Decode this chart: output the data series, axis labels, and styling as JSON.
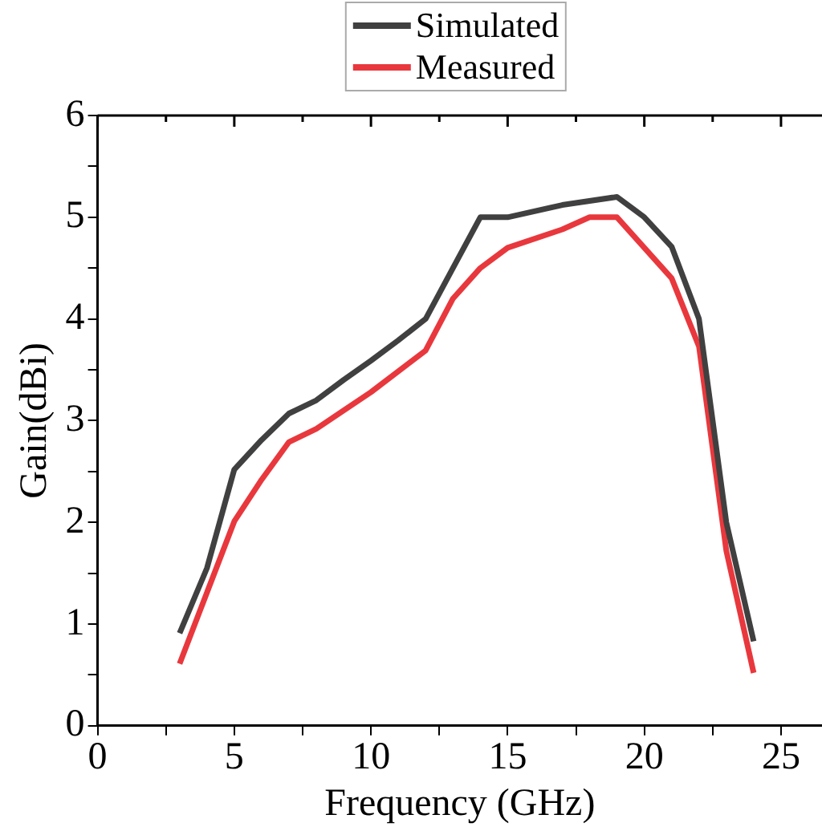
{
  "chart_data": {
    "type": "line",
    "xlabel": "Frequency (GHz)",
    "ylabel": "Gain(dBi)",
    "xlim": [
      0,
      26.5
    ],
    "ylim": [
      0,
      6
    ],
    "xticks": [
      0,
      {
        "value": 2.5,
        "label": null
      },
      5,
      {
        "value": 7.5,
        "label": null
      },
      10,
      {
        "value": 12.5,
        "label": null
      },
      15,
      {
        "value": 17.5,
        "label": null
      },
      20,
      {
        "value": 22.5,
        "label": null
      },
      25
    ],
    "yticks": [
      0,
      {
        "value": 0.5,
        "label": null
      },
      1,
      {
        "value": 1.5,
        "label": null
      },
      2,
      {
        "value": 2.5,
        "label": null
      },
      3,
      {
        "value": 3.5,
        "label": null
      },
      4,
      {
        "value": 4.5,
        "label": null
      },
      5,
      {
        "value": 5.5,
        "label": null
      },
      6
    ],
    "grid": false,
    "legend": "top",
    "marker": "none",
    "line_style": "solid",
    "series": [
      {
        "name": "Simulated",
        "color": "#404040",
        "x": [
          3,
          4,
          5,
          6,
          7,
          8,
          9,
          10,
          11,
          12,
          13,
          14,
          15,
          17,
          19,
          20,
          21,
          22,
          23,
          24
        ],
        "values": [
          0.91,
          1.55,
          2.52,
          2.81,
          3.07,
          3.2,
          3.4,
          3.59,
          3.79,
          4.0,
          4.5,
          5.0,
          5.0,
          5.12,
          5.2,
          5.0,
          4.71,
          4.0,
          2.0,
          0.83
        ]
      },
      {
        "name": "Measured",
        "color": "#e8383d",
        "x": [
          3,
          5,
          6,
          7,
          8,
          10,
          12,
          13,
          14,
          15,
          17,
          18,
          19,
          21,
          22,
          23,
          24
        ],
        "values": [
          0.61,
          2.01,
          2.42,
          2.79,
          2.92,
          3.28,
          3.69,
          4.2,
          4.5,
          4.7,
          4.88,
          5.0,
          5.0,
          4.4,
          3.73,
          1.72,
          0.52
        ]
      }
    ]
  }
}
